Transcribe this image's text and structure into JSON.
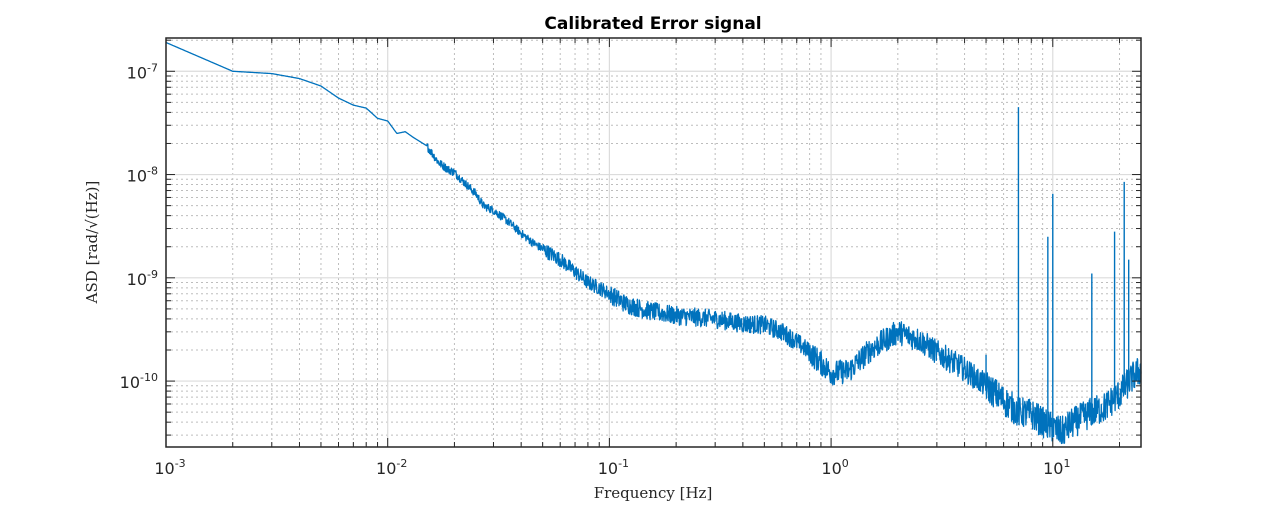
{
  "chart_data": {
    "type": "line",
    "title": "Calibrated Error signal",
    "xlabel": "Frequency [Hz]",
    "ylabel": "ASD [rad/√(Hz)]",
    "xscale": "log",
    "yscale": "log",
    "xlim": [
      0.001,
      25
    ],
    "ylim": [
      2.3e-11,
      2.1e-07
    ],
    "grid": "major and minor, dotted",
    "x_ticks": [
      {
        "value": 0.001,
        "base": "10",
        "exp": "-3"
      },
      {
        "value": 0.01,
        "base": "10",
        "exp": "-2"
      },
      {
        "value": 0.1,
        "base": "10",
        "exp": "-1"
      },
      {
        "value": 1,
        "base": "10",
        "exp": "0"
      },
      {
        "value": 10,
        "base": "10",
        "exp": "1"
      }
    ],
    "y_ticks": [
      {
        "value": 1e-10,
        "base": "10",
        "exp": "-10"
      },
      {
        "value": 1e-09,
        "base": "10",
        "exp": "-9"
      },
      {
        "value": 1e-08,
        "base": "10",
        "exp": "-8"
      },
      {
        "value": 1e-07,
        "base": "10",
        "exp": "-7"
      }
    ],
    "line_color": "#0072bd",
    "series": [
      {
        "x": [
          0.001,
          0.002,
          0.003,
          0.004,
          0.005,
          0.006,
          0.007,
          0.008,
          0.009,
          0.01,
          0.011,
          0.012,
          0.013,
          0.015,
          0.017,
          0.019,
          0.02,
          0.022,
          0.025,
          0.027,
          0.03,
          0.035,
          0.04,
          0.045,
          0.05,
          0.06,
          0.07,
          0.08,
          0.09,
          0.1,
          0.12,
          0.15,
          0.2,
          0.3,
          0.4,
          0.5,
          0.6,
          0.7,
          0.8,
          0.9,
          1.0,
          1.2,
          1.5,
          2.0,
          2.5,
          3.0,
          4.0,
          5.0,
          6.0,
          7.0,
          8.0,
          9.0,
          10,
          11,
          12,
          13,
          15,
          17,
          20,
          23,
          25
        ],
        "y": [
          1.9e-07,
          1e-07,
          9.5e-08,
          8.5e-08,
          7.2e-08,
          5.5e-08,
          4.7e-08,
          4.4e-08,
          3.5e-08,
          3.3e-08,
          2.5e-08,
          2.6e-08,
          2.3e-08,
          1.9e-08,
          1.3e-08,
          1.1e-08,
          1.05e-08,
          8.5e-09,
          6.5e-09,
          5e-09,
          4.5e-09,
          3.5e-09,
          2.7e-09,
          2.2e-09,
          1.9e-09,
          1.5e-09,
          1.15e-09,
          9e-10,
          8e-10,
          7e-10,
          5.5e-10,
          4.8e-10,
          4.3e-10,
          4e-10,
          3.6e-10,
          3.5e-10,
          3e-10,
          2.4e-10,
          1.9e-10,
          1.5e-10,
          1.2e-10,
          1.25e-10,
          2e-10,
          3e-10,
          2.5e-10,
          1.9e-10,
          1.3e-10,
          9e-11,
          6.5e-11,
          5e-11,
          4.8e-11,
          4e-11,
          3.5e-11,
          3.2e-11,
          3.8e-11,
          4.2e-11,
          5e-11,
          5.5e-11,
          7.5e-11,
          1.1e-10,
          1.3e-10
        ]
      }
    ],
    "peaks": [
      {
        "x": 5.0,
        "y": 1.8e-10
      },
      {
        "x": 7.0,
        "y": 4.5e-08
      },
      {
        "x": 9.5,
        "y": 2.5e-09
      },
      {
        "x": 10.0,
        "y": 6.5e-09
      },
      {
        "x": 15.0,
        "y": 1.1e-09
      },
      {
        "x": 19.0,
        "y": 2.8e-09
      },
      {
        "x": 21.0,
        "y": 8.5e-09
      },
      {
        "x": 22.0,
        "y": 1.5e-09
      }
    ]
  }
}
